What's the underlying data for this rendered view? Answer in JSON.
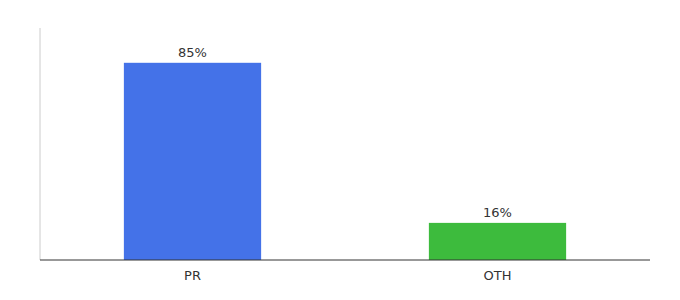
{
  "chart_data": {
    "type": "bar",
    "categories": [
      "PR",
      "OTH"
    ],
    "values": [
      85,
      16
    ],
    "value_labels": [
      "85%",
      "16%"
    ],
    "data_labels": true,
    "colors": [
      "#4472e8",
      "#3dbb3d"
    ],
    "ylim": [
      0,
      100
    ],
    "yticks": [],
    "tick_labels": "x",
    "grid": false
  }
}
